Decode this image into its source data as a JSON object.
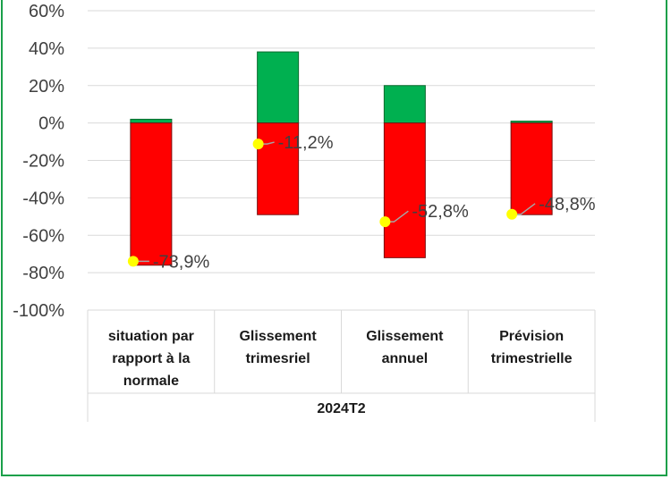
{
  "chart_data": {
    "type": "bar",
    "group_label": "2024T2",
    "categories": [
      [
        "situation par",
        "rapport à la",
        "normale"
      ],
      [
        "Glissement",
        "trimesriel"
      ],
      [
        "Glissement",
        "annuel"
      ],
      [
        "Prévision",
        "trimestrielle"
      ]
    ],
    "series": [
      {
        "values": [
          2,
          38,
          20,
          1
        ],
        "color": "#00b050"
      },
      {
        "values": [
          -76,
          -49,
          -72,
          -49
        ],
        "color": "#ff0000"
      }
    ],
    "points": [
      {
        "value": -73.9,
        "label": "-73,9%"
      },
      {
        "value": -11.2,
        "label": "-11,2%"
      },
      {
        "value": -52.8,
        "label": "-52,8%"
      },
      {
        "value": -48.8,
        "label": "-48,8%"
      }
    ],
    "point_color": "#ffff00",
    "ylim": [
      -100,
      60
    ],
    "yticks": [
      60,
      40,
      20,
      0,
      -20,
      -40,
      -60,
      -80,
      -100
    ],
    "ytick_labels": [
      "60%",
      "40%",
      "20%",
      "0%",
      "-20%",
      "-40%",
      "-60%",
      "-80%",
      "-100%"
    ],
    "grid": true
  }
}
